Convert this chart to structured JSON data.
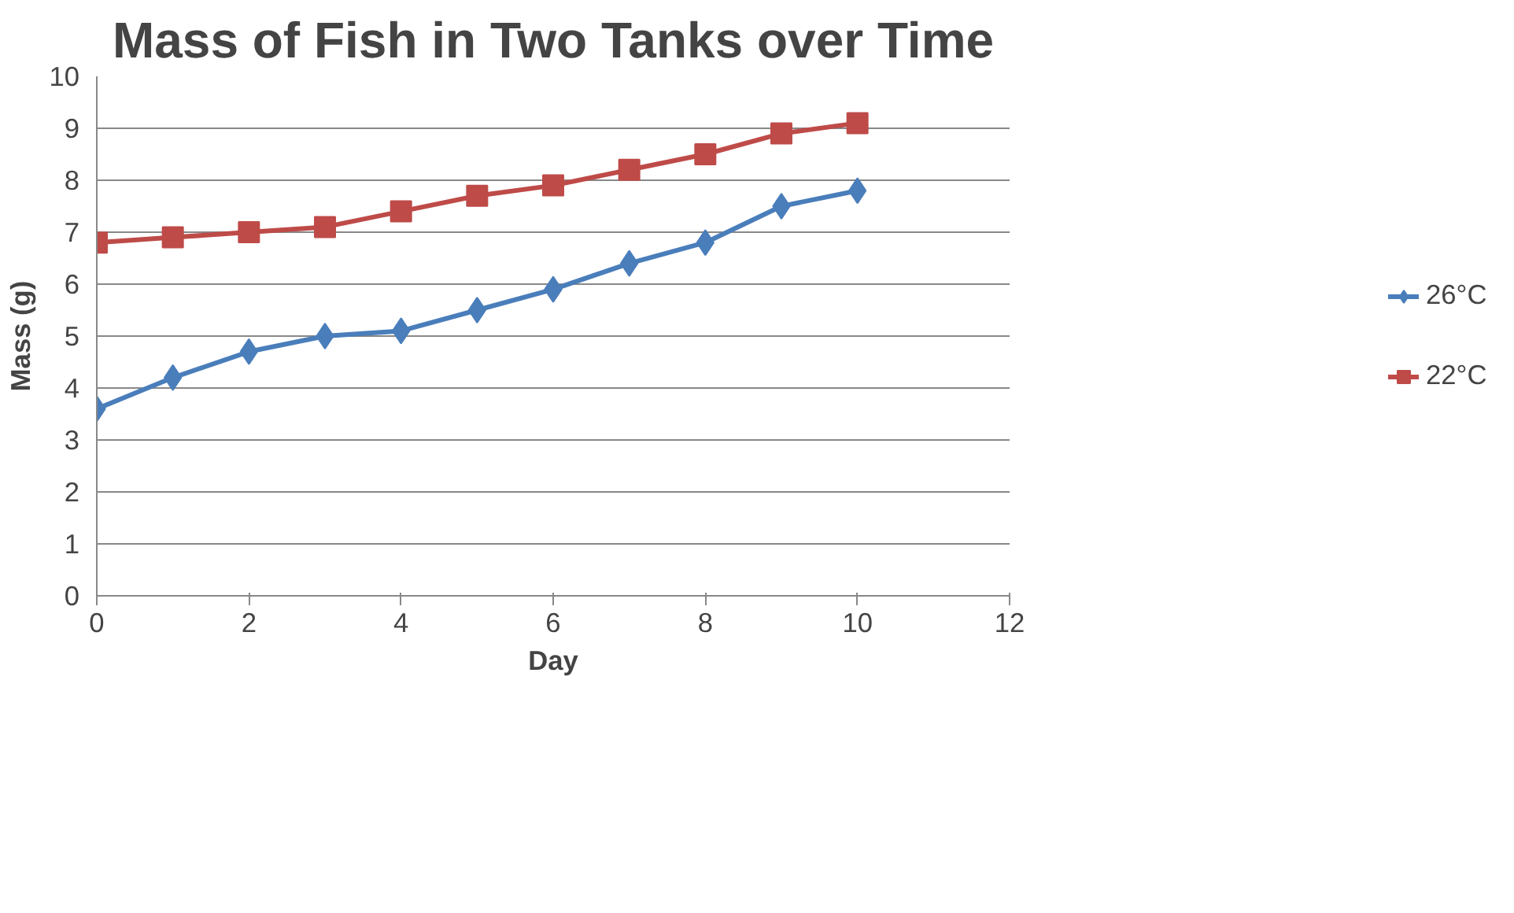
{
  "chart_data": {
    "type": "line",
    "title": "Mass of Fish in Two Tanks over Time",
    "xlabel": "Day",
    "ylabel": "Mass (g)",
    "x": [
      0,
      1,
      2,
      3,
      4,
      5,
      6,
      7,
      8,
      9,
      10
    ],
    "series": [
      {
        "name": "26°C",
        "color": "#4a7ebb",
        "marker": "diamond",
        "values": [
          3.6,
          4.2,
          4.7,
          5.0,
          5.1,
          5.5,
          5.9,
          6.4,
          6.8,
          7.5,
          7.8
        ]
      },
      {
        "name": "22°C",
        "color": "#be4b48",
        "marker": "square",
        "values": [
          6.8,
          6.9,
          7.0,
          7.1,
          7.4,
          7.7,
          7.9,
          8.2,
          8.5,
          8.9,
          9.1
        ]
      }
    ],
    "xlim": [
      0,
      12
    ],
    "xticks": [
      0,
      2,
      4,
      6,
      8,
      10,
      12
    ],
    "ylim": [
      0,
      10
    ],
    "yticks": [
      0,
      1,
      2,
      3,
      4,
      5,
      6,
      7,
      8,
      9,
      10
    ],
    "grid": "y",
    "legend": "right",
    "line_style": "solid"
  }
}
